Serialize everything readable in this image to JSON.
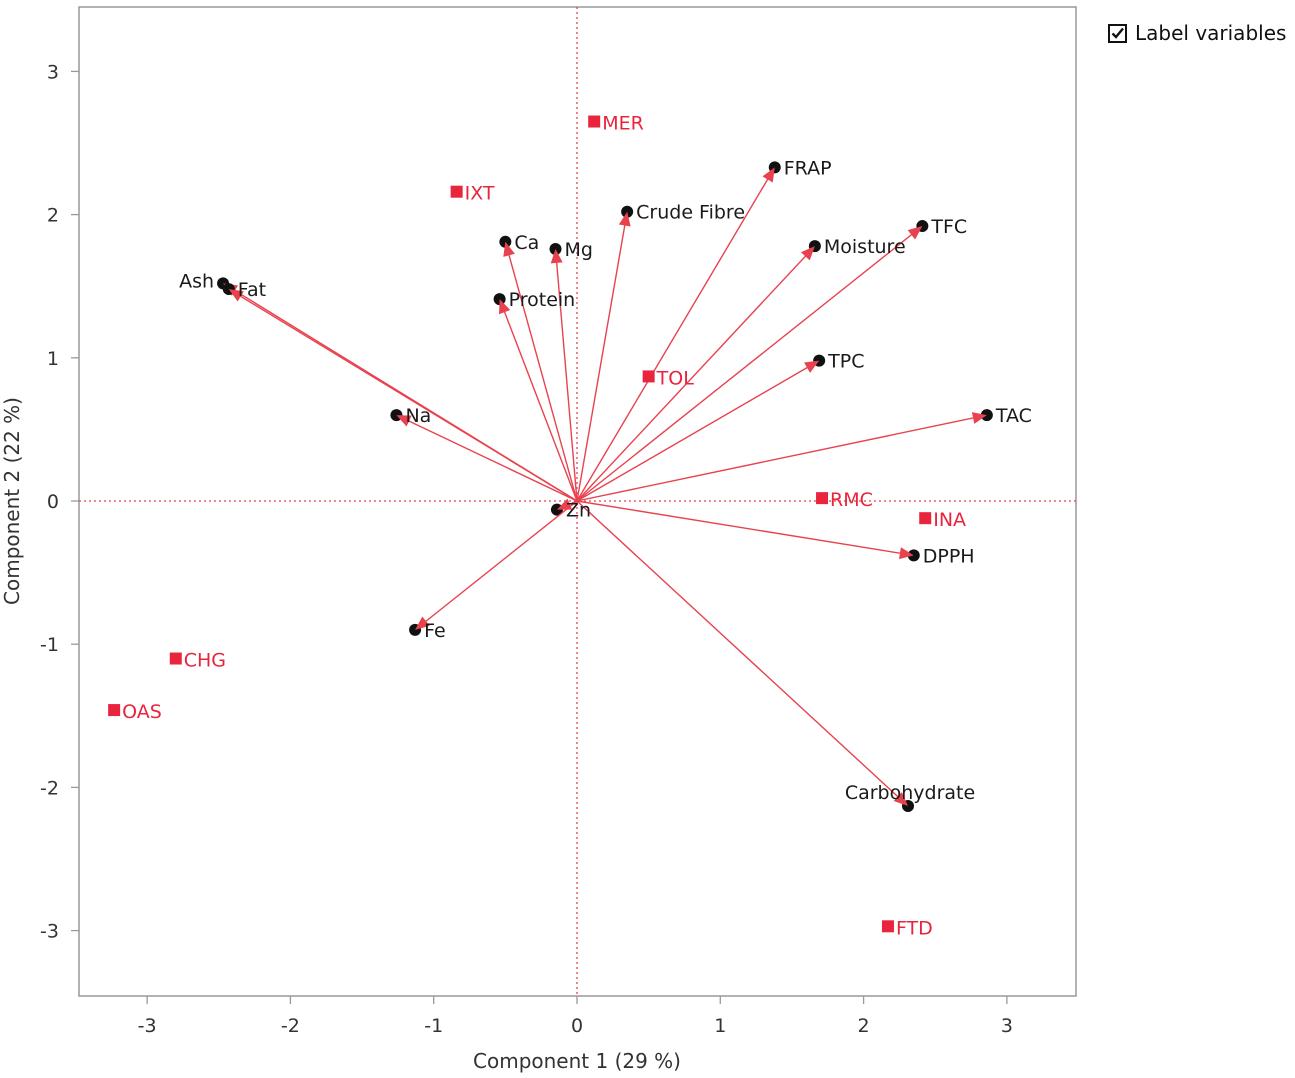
{
  "controls": {
    "label_variables": {
      "label": "Label variables",
      "checked": true
    }
  },
  "chart_data": {
    "type": "scatter",
    "subtype": "biplot",
    "xlabel": "Component 1  (29 %)",
    "ylabel": "Component 2  (22 %)",
    "xlim": [
      -3.5,
      3.5
    ],
    "ylim": [
      -3.5,
      3.35
    ],
    "xticks": [
      -3,
      -2,
      -1,
      0,
      1,
      2,
      3
    ],
    "yticks": [
      3,
      2,
      1,
      0,
      -1,
      -2,
      -3
    ],
    "reference_lines": {
      "x": 0,
      "y": 0,
      "style": "dotted",
      "color": "#e8424f"
    },
    "colors": {
      "loading": "#e8424f",
      "marker": "#111111",
      "observation": "#e8253c",
      "frame": "#999999"
    },
    "variables": [
      {
        "label": "FRAP",
        "x": 1.38,
        "y": 2.33,
        "label_side": "right"
      },
      {
        "label": "Crude Fibre",
        "x": 0.35,
        "y": 2.02,
        "label_side": "right"
      },
      {
        "label": "TFC",
        "x": 2.41,
        "y": 1.92,
        "label_side": "right"
      },
      {
        "label": "Ca",
        "x": -0.5,
        "y": 1.81,
        "label_side": "right"
      },
      {
        "label": "Moisture",
        "x": 1.66,
        "y": 1.78,
        "label_side": "right"
      },
      {
        "label": "Mg",
        "x": -0.15,
        "y": 1.76,
        "label_side": "right"
      },
      {
        "label": "Ash",
        "x": -2.47,
        "y": 1.52,
        "label_side": "left"
      },
      {
        "label": "Fat",
        "x": -2.43,
        "y": 1.48,
        "label_side": "right"
      },
      {
        "label": "Protein",
        "x": -0.54,
        "y": 1.41,
        "label_side": "right"
      },
      {
        "label": "TPC",
        "x": 1.69,
        "y": 0.98,
        "label_side": "right"
      },
      {
        "label": "TAC",
        "x": 2.86,
        "y": 0.6,
        "label_side": "right"
      },
      {
        "label": "Na",
        "x": -1.26,
        "y": 0.6,
        "label_side": "right"
      },
      {
        "label": "Zn",
        "x": -0.14,
        "y": -0.06,
        "label_side": "right"
      },
      {
        "label": "DPPH",
        "x": 2.35,
        "y": -0.38,
        "label_side": "right"
      },
      {
        "label": "Fe",
        "x": -1.13,
        "y": -0.9,
        "label_side": "right"
      },
      {
        "label": "Carbohydrate",
        "x": 2.31,
        "y": -2.13,
        "label_side": "above"
      }
    ],
    "observations": [
      {
        "label": "MER",
        "x": 0.12,
        "y": 2.65
      },
      {
        "label": "IXT",
        "x": -0.84,
        "y": 2.16
      },
      {
        "label": "TOL",
        "x": 0.5,
        "y": 0.87
      },
      {
        "label": "RMC",
        "x": 1.71,
        "y": 0.02
      },
      {
        "label": "INA",
        "x": 2.43,
        "y": -0.12
      },
      {
        "label": "CHG",
        "x": -2.8,
        "y": -1.1
      },
      {
        "label": "OAS",
        "x": -3.23,
        "y": -1.46
      },
      {
        "label": "FTD",
        "x": 2.17,
        "y": -2.97
      }
    ]
  }
}
